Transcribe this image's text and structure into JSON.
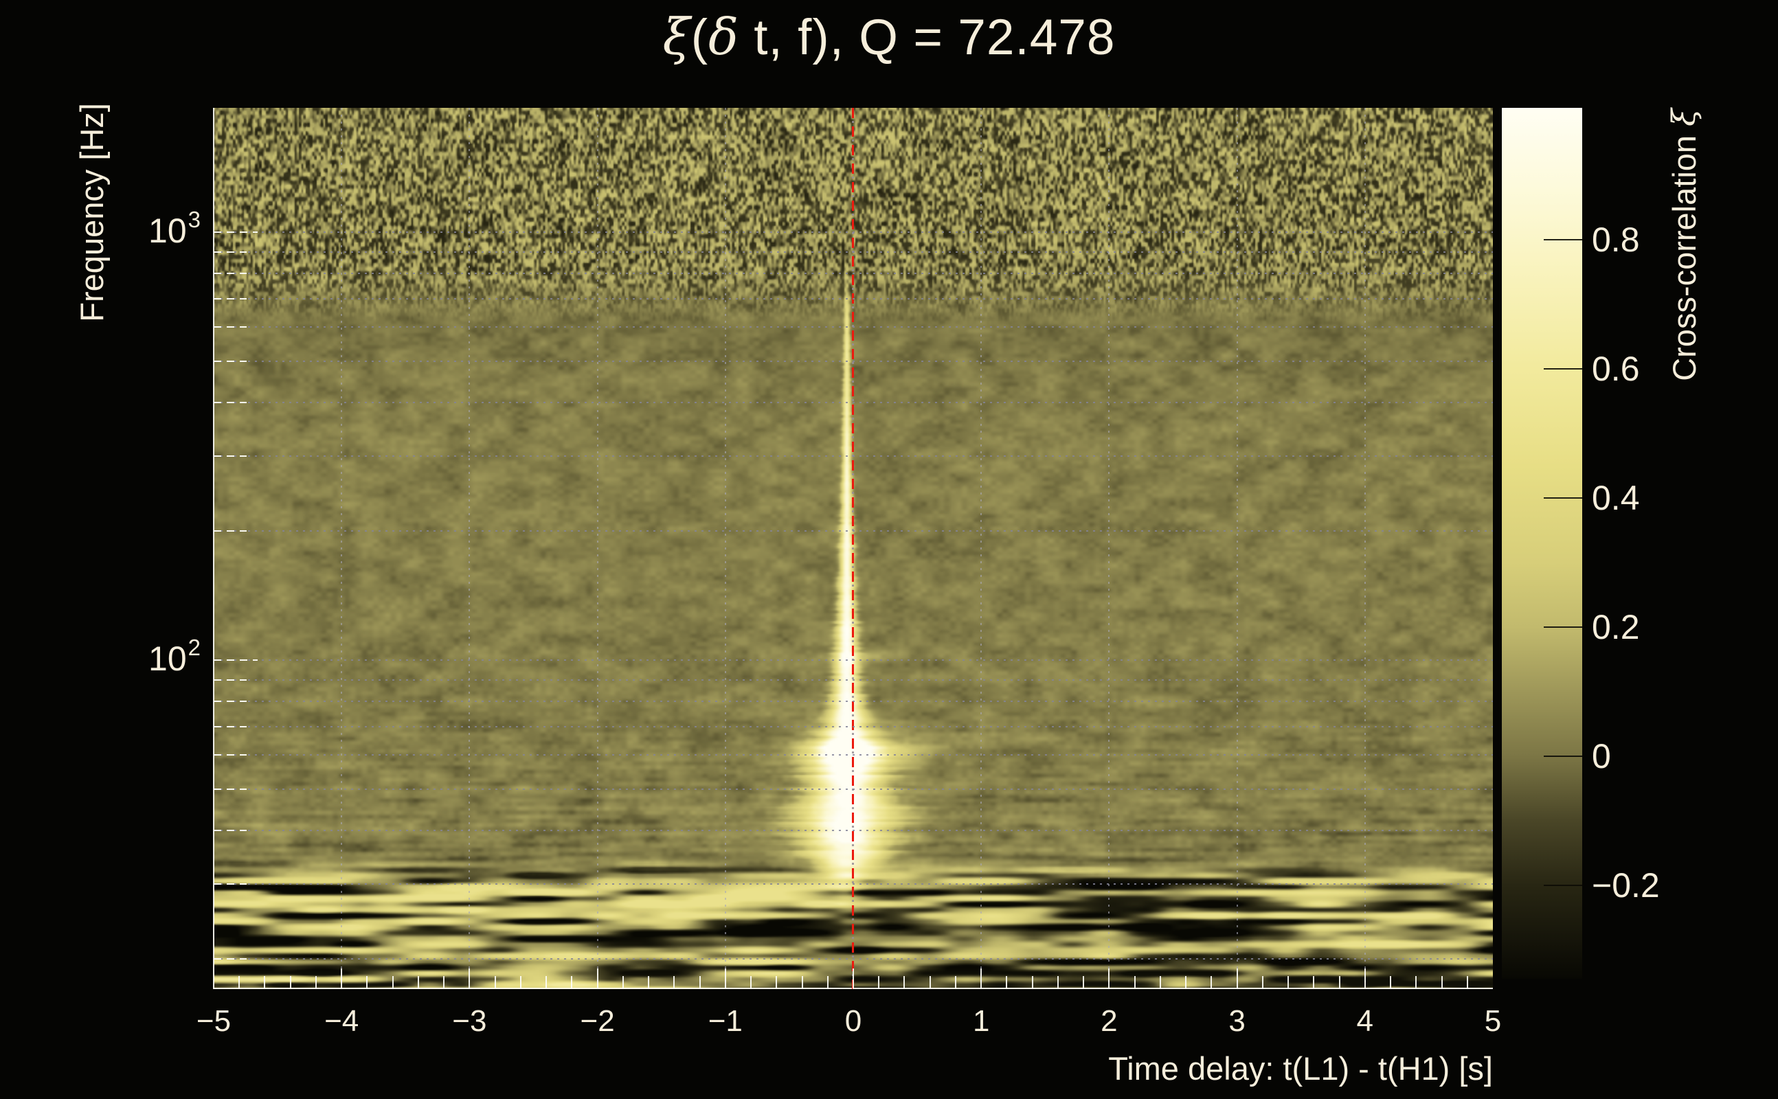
{
  "title": {
    "full": "ξ(δ t, f), Q = 72.478",
    "q_value": "72.478",
    "parts": [
      {
        "t": "ξ"
      },
      {
        "t": "("
      },
      {
        "t": "δ"
      },
      {
        "t": " t, f), Q = 72.478"
      }
    ]
  },
  "x_axis": {
    "title": "Time delay: t(L1) - t(H1) [s]",
    "min": -5,
    "max": 5,
    "minor_step": 0.2,
    "ticks": [
      {
        "label": "−5",
        "t": -5
      },
      {
        "label": "−4",
        "t": -4
      },
      {
        "label": "−3",
        "t": -3
      },
      {
        "label": "−2",
        "t": -2
      },
      {
        "label": "−1",
        "t": -1
      },
      {
        "label": "0",
        "t": 0
      },
      {
        "label": "1",
        "t": 1
      },
      {
        "label": "2",
        "t": 2
      },
      {
        "label": "3",
        "t": 3
      },
      {
        "label": "4",
        "t": 4
      },
      {
        "label": "5",
        "t": 5
      }
    ],
    "gridline_values": [
      -4,
      -3,
      -2,
      -1,
      1,
      2,
      3,
      4
    ]
  },
  "y_axis": {
    "title": "Frequency [Hz]",
    "scale": "log",
    "min_hz": 17,
    "max_hz": 1950,
    "major_ticks": [
      {
        "base": "10",
        "exp": "3",
        "hz": 1000
      },
      {
        "base": "10",
        "exp": "2",
        "hz": 100
      }
    ],
    "gridline_hz": [
      1000,
      900,
      800,
      700,
      600,
      500,
      400,
      300,
      200,
      100,
      90,
      80,
      70,
      60,
      50,
      40,
      30,
      20
    ]
  },
  "colorbar": {
    "title": "Cross-correlation ξ",
    "title_parts": [
      {
        "t": "Cross-correlation "
      },
      {
        "t": "ξ"
      }
    ],
    "min": -0.345,
    "max": 1.004,
    "ticks": [
      {
        "label": "0.8",
        "v": 0.8
      },
      {
        "label": "0.6",
        "v": 0.6
      },
      {
        "label": "0.4",
        "v": 0.4
      },
      {
        "label": "0.2",
        "v": 0.2
      },
      {
        "label": "0",
        "v": 0.0
      },
      {
        "label": "−0.2",
        "v": -0.2
      }
    ]
  },
  "marker": {
    "t0": 0,
    "style": "dashed",
    "color": "#ec1a0e"
  },
  "colors": {
    "background": "#050503",
    "text": "#f6eedb",
    "grid_dot": "#8f8fa3",
    "red_line": "#ec1a0e",
    "tick_white": "#fdfdf6",
    "olive_background": "#8d864f"
  },
  "chart_data": {
    "type": "heatmap",
    "title": "ξ(δ t, f), Q = 72.478",
    "xlabel": "Time delay: t(L1) - t(H1) [s]",
    "ylabel": "Frequency [Hz]",
    "zlabel": "Cross-correlation ξ",
    "x_range": [
      -5,
      5
    ],
    "y_range_hz": [
      17,
      1950
    ],
    "y_scale": "log",
    "z_range": [
      -0.345,
      1.004
    ],
    "x_ticks": [
      -5,
      -4,
      -3,
      -2,
      -1,
      0,
      1,
      2,
      3,
      4,
      5
    ],
    "y_ticks_hz": [
      100,
      1000
    ],
    "z_ticks": [
      0.8,
      0.6,
      0.4,
      0.2,
      0.0,
      -0.2
    ],
    "q_value": 72.478,
    "peak": {
      "t": 0,
      "f_hz_range": [
        28,
        750
      ],
      "max_xi": 1.0,
      "widest_at_hz": 42
    },
    "vertical_marker_line": {
      "t": 0,
      "color": "red",
      "dashed": true
    },
    "features": [
      "uniform olive noise field (xi ~ 0) over mid frequencies 35-600 Hz",
      "fine speckled grain band above ~650 Hz",
      "strong horizontal bright/dark streaks below ~30 Hz across all time delays",
      "bright cream plume at t=0: narrow above 100 Hz, bulging to ~±0.3 s near 40-60 Hz",
      "horizontal bright arm at ~60 Hz extending to about ±0.5 s"
    ],
    "colormap": [
      [
        -0.36,
        [
          8,
          8,
          3
        ]
      ],
      [
        -0.2,
        [
          40,
          38,
          19
        ]
      ],
      [
        -0.1,
        [
          74,
          70,
          39
        ]
      ],
      [
        0,
        [
          124,
          118,
          69
        ]
      ],
      [
        0.1,
        [
          158,
          151,
          89
        ]
      ],
      [
        0.2,
        [
          194,
          186,
          109
        ]
      ],
      [
        0.3,
        [
          215,
          206,
          121
        ]
      ],
      [
        0.45,
        [
          231,
          222,
          133
        ]
      ],
      [
        0.6,
        [
          242,
          234,
          157
        ]
      ],
      [
        0.75,
        [
          249,
          243,
          189
        ]
      ],
      [
        0.88,
        [
          253,
          250,
          219
        ]
      ],
      [
        1.03,
        [
          255,
          254,
          243
        ]
      ]
    ],
    "heatmap_spec": {
      "t0": -0.05,
      "plume_amp_vs_logf": [
        [
          2.95,
          0
        ],
        [
          2.88,
          0.18
        ],
        [
          2.8,
          0.5
        ],
        [
          2.6,
          0.64
        ],
        [
          2.45,
          0.8
        ],
        [
          2.2,
          0.92
        ],
        [
          2.0,
          1.0
        ],
        [
          1.75,
          1.04
        ],
        [
          1.62,
          1.05
        ],
        [
          1.55,
          0.95
        ],
        [
          1.5,
          0.6
        ],
        [
          1.45,
          0.22
        ],
        [
          1.41,
          0.05
        ],
        [
          1.3,
          0
        ]
      ],
      "plume_sigma_s_vs_logf": [
        [
          3.0,
          0.016
        ],
        [
          2.78,
          0.02
        ],
        [
          2.48,
          0.03
        ],
        [
          2.18,
          0.05
        ],
        [
          2.0,
          0.075
        ],
        [
          1.9,
          0.105
        ],
        [
          1.8,
          0.19
        ],
        [
          1.7,
          0.27
        ],
        [
          1.62,
          0.32
        ],
        [
          1.55,
          0.27
        ],
        [
          1.5,
          0.18
        ],
        [
          1.45,
          0.09
        ],
        [
          1.38,
          0.05
        ]
      ],
      "arm60": {
        "u": 1.785,
        "amp": 0.5,
        "du": 0.022,
        "amp2": 0.22,
        "du2": 0.05,
        "sigma_t": 0.42
      },
      "arm100": {
        "u": 2.005,
        "amp": 0.16,
        "du": 0.014,
        "sigma_t": 0.3
      },
      "bands": {
        "top_grain_start_hz": 590,
        "top_grain_full_hz": 850,
        "bottom_streak_start_hz": 34,
        "bottom_streak_full_hz": 28
      }
    }
  }
}
